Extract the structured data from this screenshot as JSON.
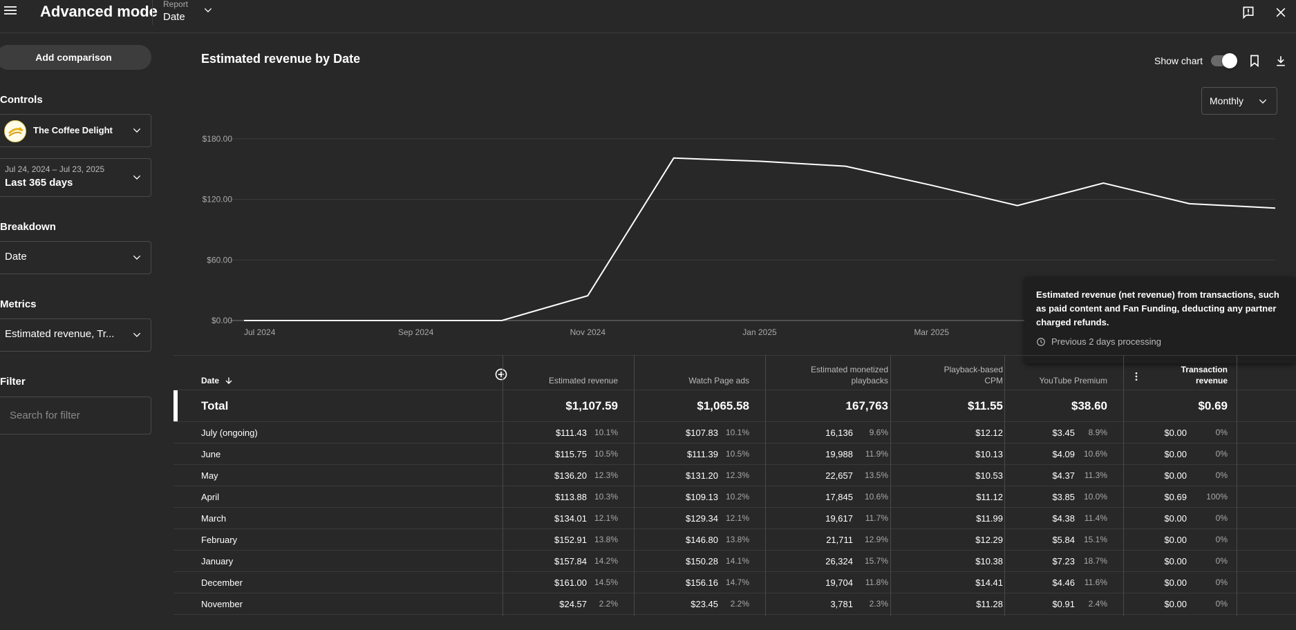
{
  "header": {
    "title": "Advanced mode",
    "report_label": "Report",
    "report_value": "Date"
  },
  "sidebar": {
    "add_comparison": "Add comparison",
    "controls_label": "Controls",
    "channel_name": "The Coffee Delight",
    "date_range_sub": "Jul 24, 2024 – Jul 23, 2025",
    "date_range_main": "Last 365 days",
    "breakdown_label": "Breakdown",
    "breakdown_value": "Date",
    "metrics_label": "Metrics",
    "metrics_value": "Estimated revenue, Tr...",
    "filter_label": "Filter",
    "filter_placeholder": "Search for filter"
  },
  "chart_header": {
    "title": "Estimated revenue by Date",
    "show_chart_label": "Show chart",
    "show_chart_on": true,
    "interval": "Monthly"
  },
  "chart_data": {
    "type": "line",
    "x": [
      "2024-07",
      "2024-08",
      "2024-09",
      "2024-10",
      "2024-11",
      "2024-12",
      "2025-01",
      "2025-02",
      "2025-03",
      "2025-04",
      "2025-05",
      "2025-06",
      "2025-07"
    ],
    "series": [
      {
        "values": [
          0,
          0,
          0,
          0,
          24.57,
          161.0,
          157.84,
          152.91,
          134.01,
          113.88,
          136.2,
          115.75,
          111.43
        ]
      }
    ],
    "xtick_labels": [
      "Jul 2024",
      "Sep 2024",
      "Nov 2024",
      "Jan 2025",
      "Mar 2025"
    ],
    "ytick_labels": [
      "$0.00",
      "$60.00",
      "$120.00",
      "$180.00"
    ],
    "yticks": [
      0,
      60,
      120,
      180
    ],
    "ylim": [
      0,
      180
    ],
    "grid": true,
    "line_color": "#ffffff"
  },
  "tooltip": {
    "text": "Estimated revenue (net revenue) from transactions, such as paid content and Fan Funding, deducting any partner charged refunds.",
    "footer": "Previous 2 days processing"
  },
  "table": {
    "columns": [
      {
        "label": "Date"
      },
      {
        "label": "Estimated revenue"
      },
      {
        "label": "Watch Page ads"
      },
      {
        "label": "Estimated monetized playbacks",
        "line1": "Estimated monetized",
        "line2": "playbacks"
      },
      {
        "label": "Playback-based CPM",
        "line1": "Playback-based",
        "line2": "CPM"
      },
      {
        "label": "YouTube Premium"
      },
      {
        "label": "Transaction revenue",
        "line1": "Transaction",
        "line2": "revenue"
      }
    ],
    "total": {
      "label": "Total",
      "values": [
        "$1,107.59",
        "$1,065.58",
        "167,763",
        "$11.55",
        "$38.60",
        "$0.69"
      ]
    },
    "rows": [
      {
        "label": "July (ongoing)",
        "rev": "$111.43",
        "rev_pct": "10.1%",
        "wpa": "$107.83",
        "wpa_pct": "10.1%",
        "play": "16,136",
        "play_pct": "9.6%",
        "cpm": "$12.12",
        "prem": "$3.45",
        "prem_pct": "8.9%",
        "trans": "$0.00",
        "trans_pct": "0%"
      },
      {
        "label": "June",
        "rev": "$115.75",
        "rev_pct": "10.5%",
        "wpa": "$111.39",
        "wpa_pct": "10.5%",
        "play": "19,988",
        "play_pct": "11.9%",
        "cpm": "$10.13",
        "prem": "$4.09",
        "prem_pct": "10.6%",
        "trans": "$0.00",
        "trans_pct": "0%"
      },
      {
        "label": "May",
        "rev": "$136.20",
        "rev_pct": "12.3%",
        "wpa": "$131.20",
        "wpa_pct": "12.3%",
        "play": "22,657",
        "play_pct": "13.5%",
        "cpm": "$10.53",
        "prem": "$4.37",
        "prem_pct": "11.3%",
        "trans": "$0.00",
        "trans_pct": "0%"
      },
      {
        "label": "April",
        "rev": "$113.88",
        "rev_pct": "10.3%",
        "wpa": "$109.13",
        "wpa_pct": "10.2%",
        "play": "17,845",
        "play_pct": "10.6%",
        "cpm": "$11.12",
        "prem": "$3.85",
        "prem_pct": "10.0%",
        "trans": "$0.69",
        "trans_pct": "100%"
      },
      {
        "label": "March",
        "rev": "$134.01",
        "rev_pct": "12.1%",
        "wpa": "$129.34",
        "wpa_pct": "12.1%",
        "play": "19,617",
        "play_pct": "11.7%",
        "cpm": "$11.99",
        "prem": "$4.38",
        "prem_pct": "11.4%",
        "trans": "$0.00",
        "trans_pct": "0%"
      },
      {
        "label": "February",
        "rev": "$152.91",
        "rev_pct": "13.8%",
        "wpa": "$146.80",
        "wpa_pct": "13.8%",
        "play": "21,711",
        "play_pct": "12.9%",
        "cpm": "$12.29",
        "prem": "$5.84",
        "prem_pct": "15.1%",
        "trans": "$0.00",
        "trans_pct": "0%"
      },
      {
        "label": "January",
        "rev": "$157.84",
        "rev_pct": "14.2%",
        "wpa": "$150.28",
        "wpa_pct": "14.1%",
        "play": "26,324",
        "play_pct": "15.7%",
        "cpm": "$10.38",
        "prem": "$7.23",
        "prem_pct": "18.7%",
        "trans": "$0.00",
        "trans_pct": "0%"
      },
      {
        "label": "December",
        "rev": "$161.00",
        "rev_pct": "14.5%",
        "wpa": "$156.16",
        "wpa_pct": "14.7%",
        "play": "19,704",
        "play_pct": "11.8%",
        "cpm": "$14.41",
        "prem": "$4.46",
        "prem_pct": "11.6%",
        "trans": "$0.00",
        "trans_pct": "0%"
      },
      {
        "label": "November",
        "rev": "$24.57",
        "rev_pct": "2.2%",
        "wpa": "$23.45",
        "wpa_pct": "2.2%",
        "play": "3,781",
        "play_pct": "2.3%",
        "cpm": "$11.28",
        "prem": "$0.91",
        "prem_pct": "2.4%",
        "trans": "$0.00",
        "trans_pct": "0%"
      }
    ]
  }
}
